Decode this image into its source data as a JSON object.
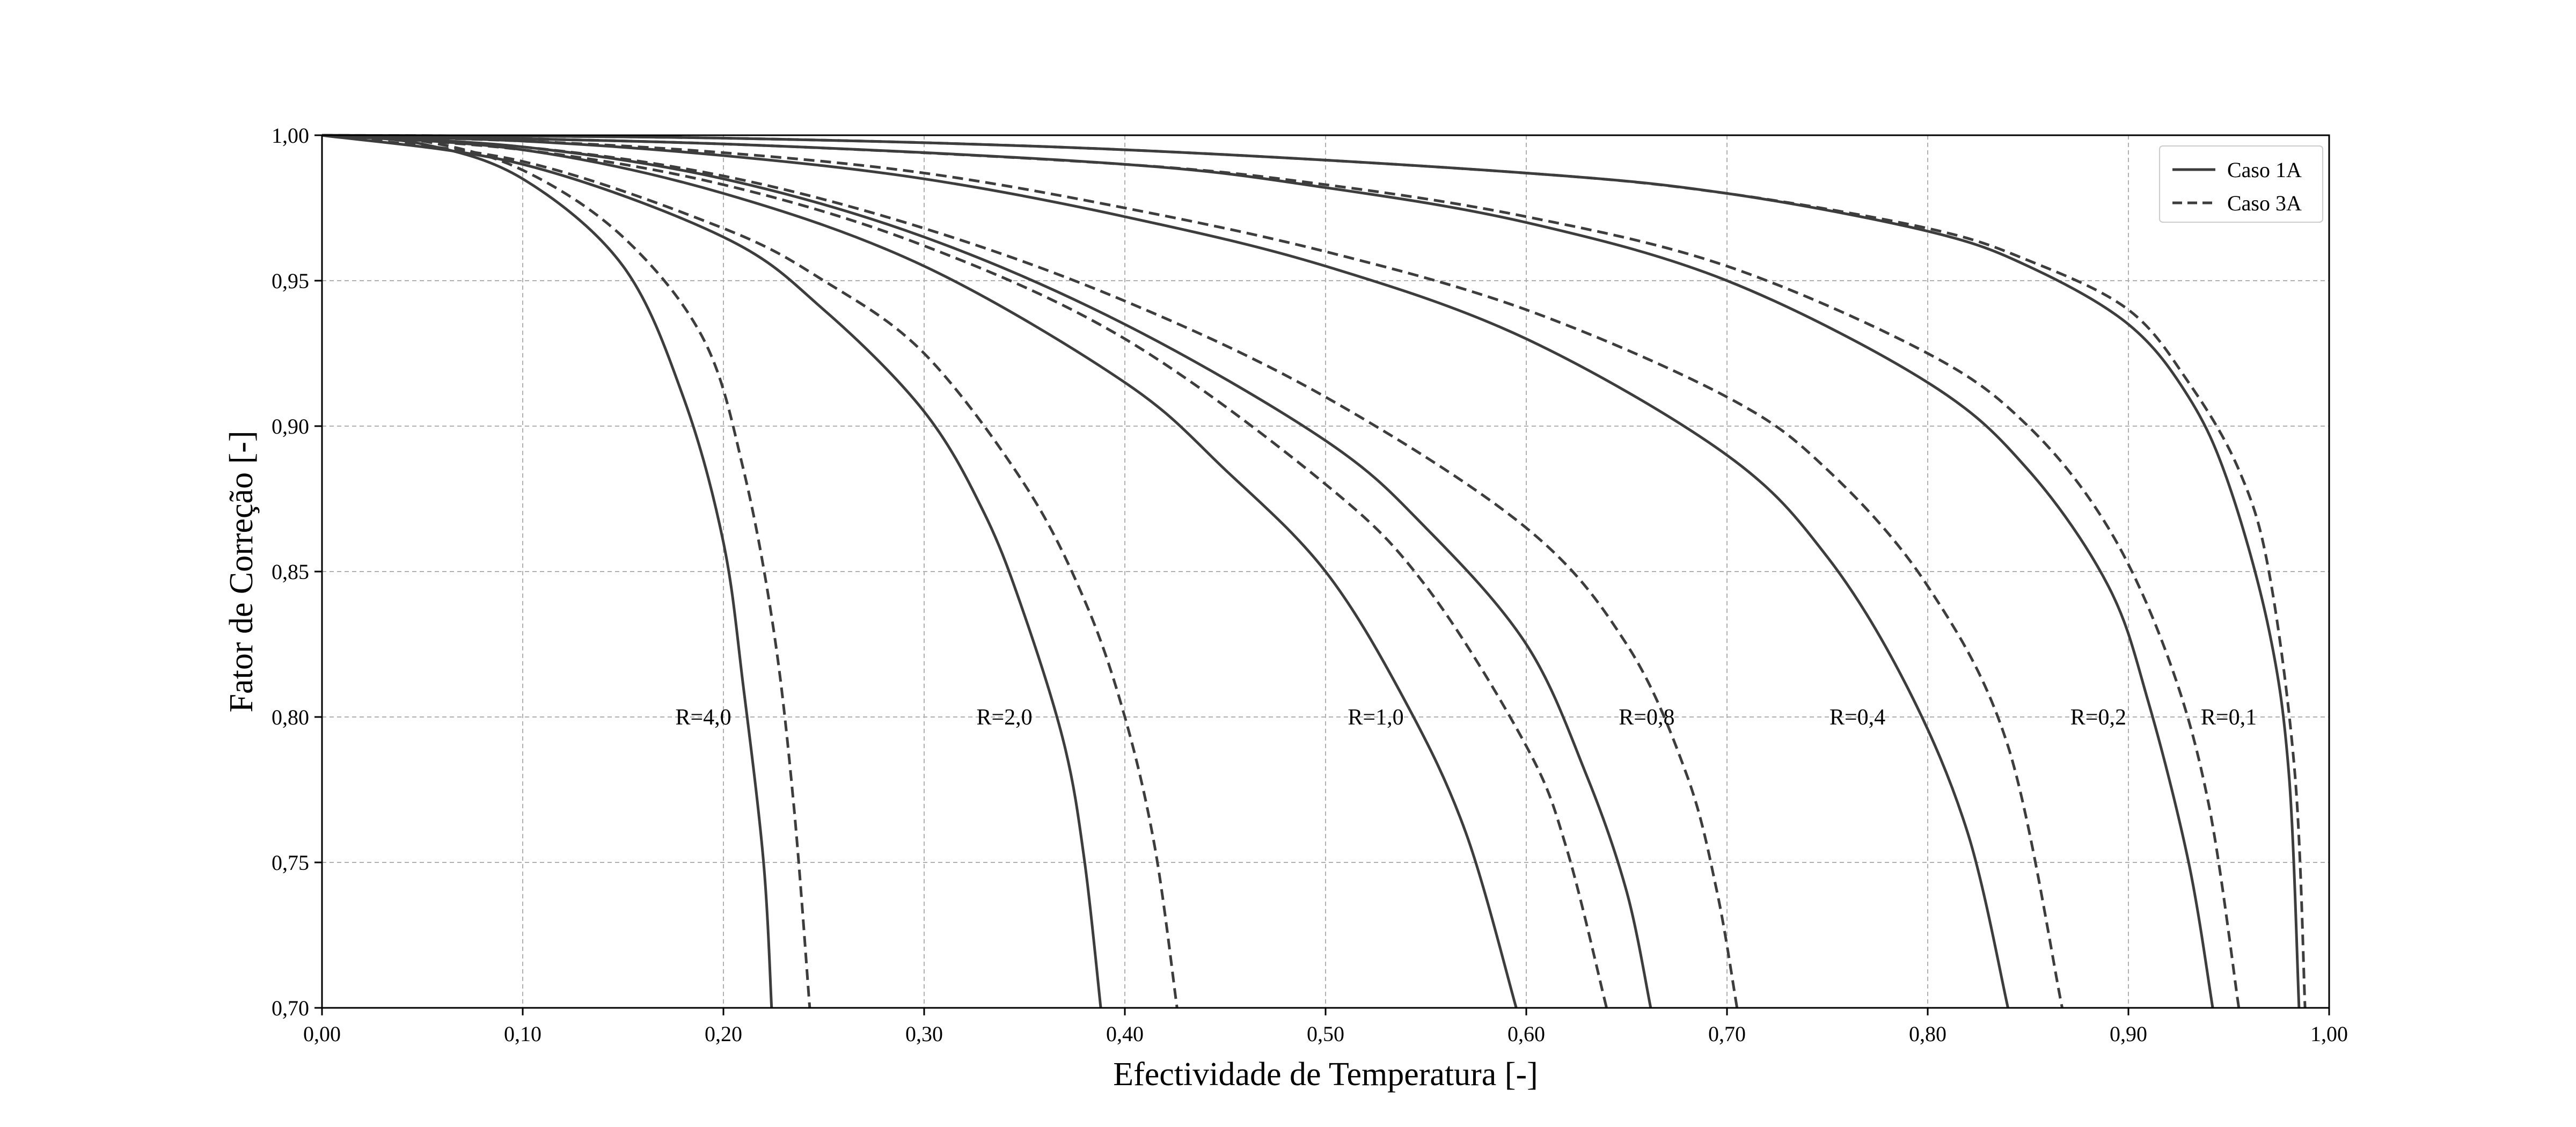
{
  "chart_data": {
    "type": "line",
    "title": "",
    "xlabel": "Efectividade de Temperatura [-]",
    "ylabel": "Fator de Correção [-]",
    "xlim": [
      0,
      1
    ],
    "ylim": [
      0.7,
      1.0
    ],
    "xticks": [
      "0,00",
      "0,10",
      "0,20",
      "0,30",
      "0,40",
      "0,50",
      "0,60",
      "0,70",
      "0,80",
      "0,90",
      "1,00"
    ],
    "yticks": [
      "0,70",
      "0,75",
      "0,80",
      "0,85",
      "0,90",
      "0,95",
      "1,00"
    ],
    "grid": true,
    "legend_position": "top-right",
    "legend": [
      {
        "label": "Caso 1A",
        "style": "solid"
      },
      {
        "label": "Caso 3A",
        "style": "dashed"
      }
    ],
    "line_color": "#3d3d3d",
    "series": [
      {
        "name": "Caso 1A",
        "curve": "R=4,0",
        "style": "solid",
        "points": [
          [
            0,
            1.0
          ],
          [
            0.05,
            0.997
          ],
          [
            0.1,
            0.985
          ],
          [
            0.15,
            0.955
          ],
          [
            0.18,
            0.91
          ],
          [
            0.2,
            0.86
          ],
          [
            0.21,
            0.81
          ],
          [
            0.22,
            0.75
          ],
          [
            0.224,
            0.7
          ]
        ]
      },
      {
        "name": "Caso 3A",
        "curve": "R=4,0",
        "style": "dashed",
        "points": [
          [
            0,
            1.0
          ],
          [
            0.05,
            0.998
          ],
          [
            0.1,
            0.988
          ],
          [
            0.15,
            0.965
          ],
          [
            0.19,
            0.93
          ],
          [
            0.21,
            0.885
          ],
          [
            0.225,
            0.83
          ],
          [
            0.235,
            0.77
          ],
          [
            0.243,
            0.7
          ]
        ]
      },
      {
        "name": "Caso 1A",
        "curve": "R=2,0",
        "style": "solid",
        "points": [
          [
            0,
            1.0
          ],
          [
            0.1,
            0.99
          ],
          [
            0.2,
            0.965
          ],
          [
            0.25,
            0.94
          ],
          [
            0.3,
            0.905
          ],
          [
            0.33,
            0.87
          ],
          [
            0.35,
            0.835
          ],
          [
            0.37,
            0.79
          ],
          [
            0.38,
            0.75
          ],
          [
            0.388,
            0.7
          ]
        ]
      },
      {
        "name": "Caso 3A",
        "curve": "R=2,0",
        "style": "dashed",
        "points": [
          [
            0,
            1.0
          ],
          [
            0.1,
            0.991
          ],
          [
            0.2,
            0.968
          ],
          [
            0.25,
            0.95
          ],
          [
            0.3,
            0.925
          ],
          [
            0.35,
            0.88
          ],
          [
            0.38,
            0.84
          ],
          [
            0.4,
            0.8
          ],
          [
            0.415,
            0.755
          ],
          [
            0.426,
            0.7
          ]
        ]
      },
      {
        "name": "Caso 1A",
        "curve": "R=1,0",
        "style": "solid",
        "points": [
          [
            0,
            1.0
          ],
          [
            0.1,
            0.995
          ],
          [
            0.2,
            0.98
          ],
          [
            0.3,
            0.955
          ],
          [
            0.4,
            0.915
          ],
          [
            0.45,
            0.885
          ],
          [
            0.5,
            0.85
          ],
          [
            0.54,
            0.805
          ],
          [
            0.57,
            0.76
          ],
          [
            0.595,
            0.7
          ]
        ]
      },
      {
        "name": "Caso 3A",
        "curve": "R=1,0",
        "style": "dashed",
        "points": [
          [
            0,
            1.0
          ],
          [
            0.1,
            0.995
          ],
          [
            0.2,
            0.983
          ],
          [
            0.3,
            0.962
          ],
          [
            0.4,
            0.93
          ],
          [
            0.5,
            0.88
          ],
          [
            0.55,
            0.845
          ],
          [
            0.6,
            0.79
          ],
          [
            0.62,
            0.755
          ],
          [
            0.64,
            0.7
          ]
        ]
      },
      {
        "name": "Caso 1A",
        "curve": "R=0,8",
        "style": "solid",
        "points": [
          [
            0,
            1.0
          ],
          [
            0.1,
            0.996
          ],
          [
            0.2,
            0.985
          ],
          [
            0.3,
            0.965
          ],
          [
            0.4,
            0.935
          ],
          [
            0.5,
            0.895
          ],
          [
            0.55,
            0.865
          ],
          [
            0.6,
            0.825
          ],
          [
            0.63,
            0.78
          ],
          [
            0.65,
            0.74
          ],
          [
            0.662,
            0.7
          ]
        ]
      },
      {
        "name": "Caso 3A",
        "curve": "R=0,8",
        "style": "dashed",
        "points": [
          [
            0,
            1.0
          ],
          [
            0.1,
            0.996
          ],
          [
            0.2,
            0.986
          ],
          [
            0.3,
            0.968
          ],
          [
            0.4,
            0.943
          ],
          [
            0.5,
            0.91
          ],
          [
            0.6,
            0.865
          ],
          [
            0.65,
            0.825
          ],
          [
            0.68,
            0.78
          ],
          [
            0.695,
            0.74
          ],
          [
            0.705,
            0.7
          ]
        ]
      },
      {
        "name": "Caso 1A",
        "curve": "R=0,4",
        "style": "solid",
        "points": [
          [
            0,
            1.0
          ],
          [
            0.1,
            0.998
          ],
          [
            0.2,
            0.993
          ],
          [
            0.3,
            0.985
          ],
          [
            0.4,
            0.972
          ],
          [
            0.5,
            0.955
          ],
          [
            0.6,
            0.93
          ],
          [
            0.7,
            0.89
          ],
          [
            0.75,
            0.855
          ],
          [
            0.79,
            0.81
          ],
          [
            0.82,
            0.76
          ],
          [
            0.84,
            0.7
          ]
        ]
      },
      {
        "name": "Caso 3A",
        "curve": "R=0,4",
        "style": "dashed",
        "points": [
          [
            0,
            1.0
          ],
          [
            0.1,
            0.998
          ],
          [
            0.2,
            0.994
          ],
          [
            0.3,
            0.987
          ],
          [
            0.4,
            0.975
          ],
          [
            0.5,
            0.96
          ],
          [
            0.6,
            0.94
          ],
          [
            0.7,
            0.91
          ],
          [
            0.75,
            0.885
          ],
          [
            0.8,
            0.845
          ],
          [
            0.84,
            0.79
          ],
          [
            0.867,
            0.7
          ]
        ]
      },
      {
        "name": "Caso 1A",
        "curve": "R=0,2",
        "style": "solid",
        "points": [
          [
            0,
            1.0
          ],
          [
            0.2,
            0.997
          ],
          [
            0.4,
            0.99
          ],
          [
            0.5,
            0.982
          ],
          [
            0.6,
            0.97
          ],
          [
            0.7,
            0.95
          ],
          [
            0.8,
            0.915
          ],
          [
            0.85,
            0.885
          ],
          [
            0.89,
            0.845
          ],
          [
            0.91,
            0.805
          ],
          [
            0.93,
            0.75
          ],
          [
            0.942,
            0.7
          ]
        ]
      },
      {
        "name": "Caso 3A",
        "curve": "R=0,2",
        "style": "dashed",
        "points": [
          [
            0,
            1.0
          ],
          [
            0.2,
            0.997
          ],
          [
            0.4,
            0.99
          ],
          [
            0.5,
            0.983
          ],
          [
            0.6,
            0.972
          ],
          [
            0.7,
            0.955
          ],
          [
            0.8,
            0.925
          ],
          [
            0.85,
            0.9
          ],
          [
            0.89,
            0.865
          ],
          [
            0.92,
            0.82
          ],
          [
            0.94,
            0.77
          ],
          [
            0.955,
            0.7
          ]
        ]
      },
      {
        "name": "Caso 1A",
        "curve": "R=0,1",
        "style": "solid",
        "points": [
          [
            0,
            1.0
          ],
          [
            0.2,
            0.999
          ],
          [
            0.4,
            0.995
          ],
          [
            0.6,
            0.987
          ],
          [
            0.7,
            0.98
          ],
          [
            0.8,
            0.967
          ],
          [
            0.85,
            0.955
          ],
          [
            0.9,
            0.935
          ],
          [
            0.93,
            0.91
          ],
          [
            0.95,
            0.88
          ],
          [
            0.97,
            0.83
          ],
          [
            0.98,
            0.78
          ],
          [
            0.985,
            0.7
          ]
        ]
      },
      {
        "name": "Caso 3A",
        "curve": "R=0,1",
        "style": "dashed",
        "points": [
          [
            0,
            1.0
          ],
          [
            0.2,
            0.999
          ],
          [
            0.4,
            0.995
          ],
          [
            0.6,
            0.987
          ],
          [
            0.7,
            0.98
          ],
          [
            0.8,
            0.968
          ],
          [
            0.85,
            0.957
          ],
          [
            0.9,
            0.94
          ],
          [
            0.93,
            0.915
          ],
          [
            0.955,
            0.885
          ],
          [
            0.97,
            0.85
          ],
          [
            0.983,
            0.78
          ],
          [
            0.988,
            0.7
          ]
        ]
      }
    ],
    "annotations": [
      {
        "text": "R=4,0",
        "x": 0.19,
        "y": 0.8
      },
      {
        "text": "R=2,0",
        "x": 0.34,
        "y": 0.8
      },
      {
        "text": "R=1,0",
        "x": 0.525,
        "y": 0.8
      },
      {
        "text": "R=0,8",
        "x": 0.66,
        "y": 0.8
      },
      {
        "text": "R=0,4",
        "x": 0.765,
        "y": 0.8
      },
      {
        "text": "R=0,2",
        "x": 0.885,
        "y": 0.8
      },
      {
        "text": "R=0,1",
        "x": 0.95,
        "y": 0.8
      }
    ]
  }
}
